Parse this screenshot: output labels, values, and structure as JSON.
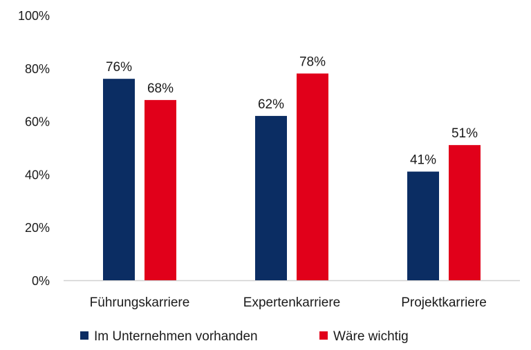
{
  "chart_data": {
    "type": "bar",
    "title": "",
    "xlabel": "",
    "ylabel": "",
    "categories": [
      "Führungskarriere",
      "Expertenkarriere",
      "Projektkarriere"
    ],
    "series": [
      {
        "name": "Im Unternehmen vorhanden",
        "color": "#0b2d63",
        "values": [
          76,
          62,
          41
        ],
        "labels": [
          "76%",
          "62%",
          "41%"
        ]
      },
      {
        "name": "Wäre wichtig",
        "color": "#e1001a",
        "values": [
          68,
          78,
          51
        ],
        "labels": [
          "68%",
          "78%",
          "51%"
        ]
      }
    ],
    "ylim": [
      0,
      100
    ],
    "yticks": [
      "0%",
      "20%",
      "40%",
      "60%",
      "80%",
      "100%"
    ],
    "grid": false,
    "legend_position": "bottom"
  }
}
